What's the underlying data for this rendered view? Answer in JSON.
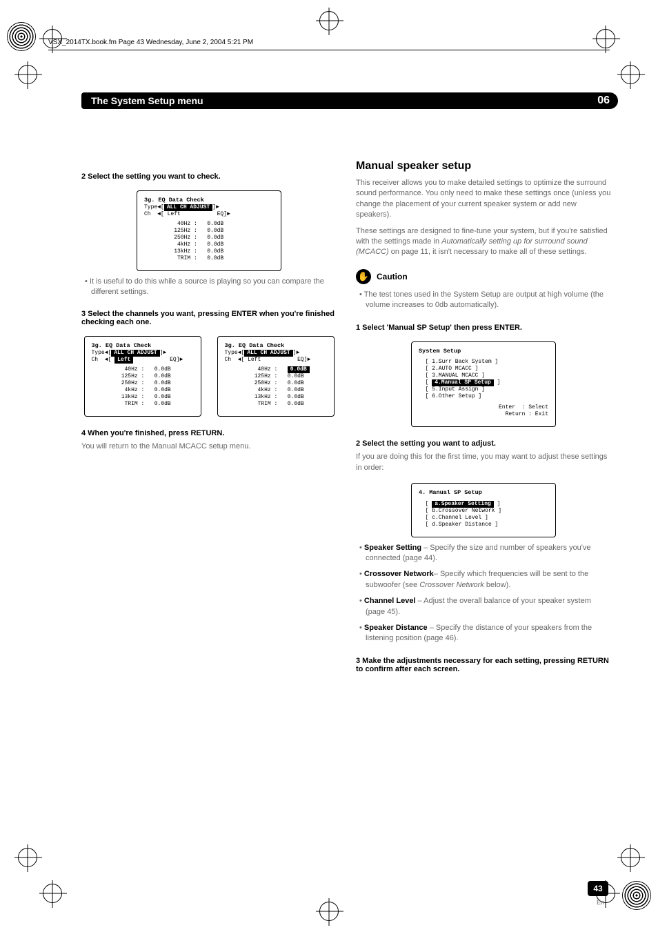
{
  "colors": {
    "black": "#000000",
    "white": "#ffffff",
    "grey_text": "#666666"
  },
  "header": {
    "runner": "VSX_2014TX.book.fm  Page 43  Wednesday, June 2, 2004  5:21 PM"
  },
  "ribbon": {
    "title": "The System Setup menu",
    "chapter": "06"
  },
  "left": {
    "step2": "2   Select the setting you want to check.",
    "lcd1": {
      "title": "3g. EQ Data Check",
      "type_label": "Type",
      "type_value": "ALL CH ADJUST",
      "ch_label": "Ch",
      "ch_value": "Left",
      "eq_label": "EQ",
      "rows": [
        {
          "f": "40Hz :",
          "v": "0.0dB"
        },
        {
          "f": "125Hz :",
          "v": "0.0dB"
        },
        {
          "f": "250Hz :",
          "v": "0.0dB"
        },
        {
          "f": "4kHz :",
          "v": "0.0dB"
        },
        {
          "f": "13kHz :",
          "v": "0.0dB"
        },
        {
          "f": "TRIM :",
          "v": "0.0dB"
        }
      ]
    },
    "note2": "•  It is useful to do this while a source is playing so you can compare the different settings.",
    "step3": "3   Select the channels you want, pressing ENTER when you're finished checking each one.",
    "lcd2a": {
      "title": "3g. EQ Data Check",
      "type_label": "Type",
      "type_value": "ALL CH ADJUST",
      "ch_label": "Ch",
      "ch_value": "Left",
      "ch_hl": true,
      "eq_label": "EQ",
      "rows": [
        {
          "f": "40Hz :",
          "v": "0.0dB"
        },
        {
          "f": "125Hz :",
          "v": "0.0dB"
        },
        {
          "f": "250Hz :",
          "v": "0.0dB"
        },
        {
          "f": "4kHz :",
          "v": "0.0dB"
        },
        {
          "f": "13kHz :",
          "v": "0.0dB"
        },
        {
          "f": "TRIM :",
          "v": "0.0dB"
        }
      ]
    },
    "lcd2b": {
      "title": "3g. EQ Data Check",
      "type_label": "Type",
      "type_value": "ALL CH ADJUST",
      "ch_label": "Ch",
      "ch_value": "Left",
      "eq_label": "EQ",
      "rows": [
        {
          "f": "40Hz :",
          "v": "0.0dB",
          "hl": true
        },
        {
          "f": "125Hz :",
          "v": "0.0dB"
        },
        {
          "f": "250Hz :",
          "v": "0.0dB"
        },
        {
          "f": "4kHz :",
          "v": "0.0dB"
        },
        {
          "f": "13kHz :",
          "v": "0.0dB"
        },
        {
          "f": "TRIM :",
          "v": "0.0dB"
        }
      ]
    },
    "step4": "4   When you're finished, press RETURN.",
    "step4_sub": "You will return to the Manual MCACC setup menu."
  },
  "right": {
    "h2": "Manual speaker setup",
    "p1": "This receiver allows you to make detailed settings to optimize the surround sound performance. You only need to make these settings once (unless you change the placement of your current speaker system or add new speakers).",
    "p2a": "These settings are designed to fine-tune your system, but if you're satisfied with the settings made in ",
    "p2i": "Automatically setting up for surround sound (MCACC)",
    "p2b": " on page 11, it isn't necessary to make all of these settings.",
    "caution_label": "Caution",
    "caution_text": "•  The test tones used in the System Setup are output at high volume (the volume increases to 0db automatically).",
    "step1": "1   Select 'Manual SP Setup' then press ENTER.",
    "lcd_sys": {
      "title": "System Setup",
      "items": [
        "1.Surr Back System",
        "2.AUTO MCACC",
        "3.MANUAL MCACC",
        "4.Manual SP Setup",
        "5.Input Assign",
        "6.Other Setup"
      ],
      "hl_index": 3,
      "footer1": "Enter  : Select",
      "footer2": "Return : Exit"
    },
    "step2": "2   Select the setting you want to adjust.",
    "step2_sub": "If you are doing this for the first time, you may want to adjust these settings in order:",
    "lcd_sp": {
      "title": "4. Manual SP Setup",
      "items": [
        "a.Speaker Setting",
        "b.Crossover Network",
        "c.Channel Level",
        "d.Speaker Distance"
      ],
      "hl_index": 0
    },
    "bul_a_b": "Speaker Setting",
    "bul_a_t": " – Specify the size and number of speakers you've connected (page 44).",
    "bul_b_b": "Crossover Network",
    "bul_b_t": "– Specify which frequencies will be sent to the subwoofer (see ",
    "bul_b_i": "Crossover Network",
    "bul_b_t2": " below).",
    "bul_c_b": "Channel Level",
    "bul_c_t": " – Adjust the overall balance of your speaker system (page 45).",
    "bul_d_b": "Speaker Distance",
    "bul_d_t": " – Specify the distance of your speakers from the listening position (page 46).",
    "step3": "3   Make the adjustments necessary for each setting, pressing RETURN to confirm after each screen."
  },
  "footer": {
    "page": "43",
    "lang": "En"
  }
}
